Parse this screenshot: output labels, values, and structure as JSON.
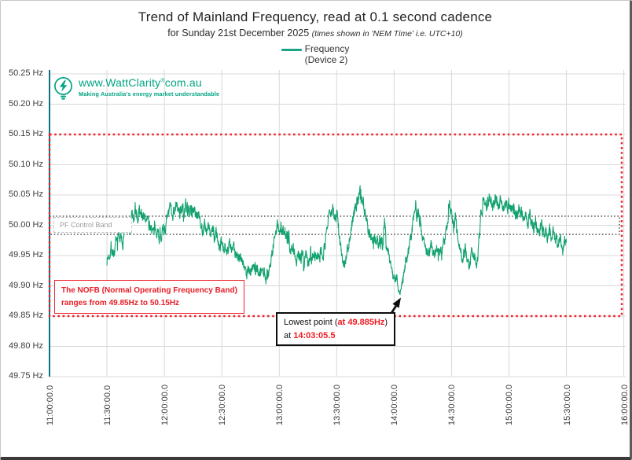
{
  "title": "Trend of Mainland Frequency, read at 0.1 second cadence",
  "subtitle": "for Sunday 21st December 2025 ",
  "subtitle_note": "(times shown in 'NEM Time' i.e. UTC+10)",
  "legend": {
    "label": "Frequency",
    "sublabel": "(Device 2)"
  },
  "logo": {
    "url_prefix": "www.WattClarity",
    "reg": "®",
    "url_suffix": "com.au",
    "tagline": "Making Australia's energy market understandable"
  },
  "annotations": {
    "pf_band_label": "PF Control Band",
    "nofb_line1": "The NOFB  (Normal Operating Frequency Band)",
    "nofb_line2": "ranges from 49.85Hz to 50.15Hz",
    "lowest_prefix": "Lowest point (",
    "lowest_value": "at 49.885Hz",
    "lowest_close": ")",
    "lowest_at": "at ",
    "lowest_time": "14:03:05.5"
  },
  "colors": {
    "trace": "#12a26e",
    "legend_line": "#1aa385",
    "red": "#f0232d",
    "axis": "#0e7180",
    "grid": "#d8d8d8",
    "pf_dotted": "#404040",
    "brand": "#00a482"
  },
  "chart_data": {
    "type": "line",
    "title": "Trend of Mainland Frequency, read at 0.1 second cadence",
    "subtitle": "for Sunday 21st December 2025 (times shown in 'NEM Time' i.e. UTC+10)",
    "ylabel_unit": "Hz",
    "ylim": [
      49.75,
      50.25
    ],
    "y_tick_labels": [
      "50.25 Hz",
      "50.20 Hz",
      "50.15 Hz",
      "50.10 Hz",
      "50.05 Hz",
      "50.00 Hz",
      "49.95 Hz",
      "49.90 Hz",
      "49.85 Hz",
      "49.80 Hz",
      "49.75 Hz"
    ],
    "y_tick_values": [
      50.25,
      50.2,
      50.15,
      50.1,
      50.05,
      50.0,
      49.95,
      49.9,
      49.85,
      49.8,
      49.75
    ],
    "x_tick_labels": [
      "11:00:00.0",
      "11:30:00.0",
      "12:00:00.0",
      "12:30:00.0",
      "13:00:00.0",
      "13:30:00.0",
      "14:00:00.0",
      "14:30:00.0",
      "15:00:00.0",
      "15:30:00.0",
      "16:00:00.0"
    ],
    "x_tick_minutes": [
      0,
      30,
      60,
      90,
      120,
      150,
      180,
      210,
      240,
      270,
      300
    ],
    "grid": true,
    "legend_position": "top",
    "nofb_band": {
      "low": 49.85,
      "high": 50.15
    },
    "pf_control_band": {
      "low": 49.985,
      "high": 50.015
    },
    "lowest_point": {
      "hz": 49.885,
      "time": "14:03:05.5",
      "minutes_after_11": 183.05
    },
    "series": [
      {
        "name": "Frequency (Device 2)",
        "color": "#12a26e",
        "noise_hz": 0.008,
        "anchors_minutes_after_11_hz": [
          [
            30,
            49.942
          ],
          [
            32,
            49.96
          ],
          [
            34,
            49.955
          ],
          [
            36,
            49.985
          ],
          [
            38,
            49.975
          ],
          [
            40,
            50.005
          ],
          [
            41.5,
            49.985
          ],
          [
            43,
            50.02
          ],
          [
            44,
            50.005
          ],
          [
            45,
            50.022
          ],
          [
            46,
            50.01
          ],
          [
            47,
            50.025
          ],
          [
            48,
            50.012
          ],
          [
            49,
            50.02
          ],
          [
            50,
            50.005
          ],
          [
            51,
            50.018
          ],
          [
            52,
            49.995
          ],
          [
            53,
            50.0
          ],
          [
            54.5,
            49.985
          ],
          [
            56,
            49.995
          ],
          [
            57.5,
            49.98
          ],
          [
            59,
            49.99
          ],
          [
            60.5,
            49.995
          ],
          [
            62,
            50.018
          ],
          [
            63,
            50.03
          ],
          [
            64.5,
            50.02
          ],
          [
            66,
            50.033
          ],
          [
            67.5,
            50.022
          ],
          [
            69,
            50.03
          ],
          [
            70.5,
            50.02
          ],
          [
            72,
            50.032
          ],
          [
            73.5,
            50.022
          ],
          [
            75,
            50.03
          ],
          [
            76.5,
            50.015
          ],
          [
            78,
            50.025
          ],
          [
            79,
            50.005
          ],
          [
            80,
            49.99
          ],
          [
            81,
            50.0
          ],
          [
            82,
            49.985
          ],
          [
            83,
            49.998
          ],
          [
            84,
            49.985
          ],
          [
            85,
            49.995
          ],
          [
            86,
            49.98
          ],
          [
            87,
            49.99
          ],
          [
            88,
            49.975
          ],
          [
            89,
            49.96
          ],
          [
            90,
            49.97
          ],
          [
            91,
            49.955
          ],
          [
            92,
            49.972
          ],
          [
            93,
            49.96
          ],
          [
            94,
            49.97
          ],
          [
            95,
            49.955
          ],
          [
            96,
            49.965
          ],
          [
            97,
            49.952
          ],
          [
            98,
            49.96
          ],
          [
            99,
            49.945
          ],
          [
            100,
            49.952
          ],
          [
            101,
            49.938
          ],
          [
            102,
            49.928
          ],
          [
            103,
            49.92
          ],
          [
            104,
            49.93
          ],
          [
            105,
            49.922
          ],
          [
            106,
            49.932
          ],
          [
            107,
            49.925
          ],
          [
            108,
            49.935
          ],
          [
            109,
            49.925
          ],
          [
            110,
            49.918
          ],
          [
            111,
            49.928
          ],
          [
            112,
            49.92
          ],
          [
            113,
            49.913
          ],
          [
            114,
            49.925
          ],
          [
            115,
            49.932
          ],
          [
            116,
            49.95
          ],
          [
            117,
            49.97
          ],
          [
            118,
            49.985
          ],
          [
            119,
            50.0
          ],
          [
            120,
            49.995
          ],
          [
            121,
            49.985
          ],
          [
            122,
            49.99
          ],
          [
            123,
            49.978
          ],
          [
            124,
            49.985
          ],
          [
            125,
            49.972
          ],
          [
            126,
            49.96
          ],
          [
            127,
            49.968
          ],
          [
            128,
            49.955
          ],
          [
            129,
            49.945
          ],
          [
            130,
            49.955
          ],
          [
            131,
            49.942
          ],
          [
            132,
            49.952
          ],
          [
            133,
            49.94
          ],
          [
            134,
            49.95
          ],
          [
            135,
            49.938
          ],
          [
            136,
            49.948
          ],
          [
            137,
            49.942
          ],
          [
            138,
            49.955
          ],
          [
            139,
            49.945
          ],
          [
            140,
            49.958
          ],
          [
            141,
            49.948
          ],
          [
            142,
            49.96
          ],
          [
            143,
            49.952
          ],
          [
            144,
            49.97
          ],
          [
            145,
            50.0
          ],
          [
            146,
            50.028
          ],
          [
            147,
            50.015
          ],
          [
            148,
            50.028
          ],
          [
            149,
            50.01
          ],
          [
            150,
            50.018
          ],
          [
            151,
            49.995
          ],
          [
            152,
            49.962
          ],
          [
            153,
            49.945
          ],
          [
            154,
            49.94
          ],
          [
            155,
            49.95
          ],
          [
            156,
            49.962
          ],
          [
            157,
            49.98
          ],
          [
            158,
            50.0
          ],
          [
            159,
            50.015
          ],
          [
            160,
            50.03
          ],
          [
            161,
            50.045
          ],
          [
            162,
            50.056
          ],
          [
            162.8,
            50.05
          ],
          [
            163.5,
            50.042
          ],
          [
            164.5,
            50.03
          ],
          [
            165.5,
            50.012
          ],
          [
            166.5,
            49.995
          ],
          [
            167.5,
            49.982
          ],
          [
            168.5,
            49.975
          ],
          [
            170,
            49.982
          ],
          [
            171.5,
            49.972
          ],
          [
            173,
            49.978
          ],
          [
            174.3,
            49.97
          ],
          [
            175,
            50.015
          ],
          [
            175.7,
            49.978
          ],
          [
            176.5,
            49.962
          ],
          [
            177.5,
            49.948
          ],
          [
            178.5,
            49.932
          ],
          [
            179.5,
            49.92
          ],
          [
            180.5,
            49.908
          ],
          [
            181.5,
            49.912
          ],
          [
            182.3,
            49.898
          ],
          [
            183.05,
            49.885
          ],
          [
            184,
            49.902
          ],
          [
            185,
            49.918
          ],
          [
            186,
            49.938
          ],
          [
            187,
            49.952
          ],
          [
            188,
            49.968
          ],
          [
            189,
            49.985
          ],
          [
            190,
            50.005
          ],
          [
            191,
            50.028
          ],
          [
            191.8,
            50.008
          ],
          [
            192.6,
            50.024
          ],
          [
            193.5,
            50.002
          ],
          [
            194.5,
            49.988
          ],
          [
            195.5,
            49.972
          ],
          [
            196.5,
            49.962
          ],
          [
            198,
            49.955
          ],
          [
            199.5,
            49.965
          ],
          [
            201,
            49.952
          ],
          [
            202.5,
            49.962
          ],
          [
            204,
            49.955
          ],
          [
            205.5,
            49.968
          ],
          [
            207,
            49.985
          ],
          [
            208,
            50.01
          ],
          [
            209,
            50.036
          ],
          [
            210,
            50.012
          ],
          [
            211,
            49.996
          ],
          [
            212,
            50.016
          ],
          [
            213,
            49.992
          ],
          [
            214,
            49.972
          ],
          [
            215,
            49.956
          ],
          [
            216,
            49.946
          ],
          [
            217,
            49.962
          ],
          [
            218,
            49.946
          ],
          [
            219,
            49.932
          ],
          [
            220,
            49.947
          ],
          [
            221,
            49.96
          ],
          [
            222,
            49.95
          ],
          [
            223,
            49.937
          ],
          [
            224,
            49.962
          ],
          [
            225,
            50.0
          ],
          [
            226,
            50.03
          ],
          [
            227,
            50.042
          ],
          [
            228.5,
            50.032
          ],
          [
            230,
            50.044
          ],
          [
            231.5,
            50.03
          ],
          [
            233,
            50.042
          ],
          [
            234.5,
            50.028
          ],
          [
            236,
            50.04
          ],
          [
            237.5,
            50.026
          ],
          [
            239,
            50.036
          ],
          [
            240.5,
            50.022
          ],
          [
            242,
            50.032
          ],
          [
            243.5,
            50.018
          ],
          [
            245,
            50.028
          ],
          [
            246.5,
            50.01
          ],
          [
            248,
            50.022
          ],
          [
            249.5,
            50.002
          ],
          [
            251,
            50.015
          ],
          [
            252.5,
            49.995
          ],
          [
            254,
            50.008
          ],
          [
            255.5,
            49.988
          ],
          [
            257,
            50.0
          ],
          [
            258,
            49.984
          ],
          [
            259,
            49.996
          ],
          [
            260,
            49.978
          ],
          [
            261,
            49.99
          ],
          [
            262,
            49.972
          ],
          [
            263,
            49.988
          ],
          [
            264,
            49.968
          ],
          [
            265,
            49.982
          ],
          [
            266,
            49.972
          ],
          [
            267,
            49.986
          ],
          [
            268,
            49.965
          ],
          [
            269,
            49.978
          ],
          [
            270,
            49.968
          ]
        ]
      }
    ]
  }
}
